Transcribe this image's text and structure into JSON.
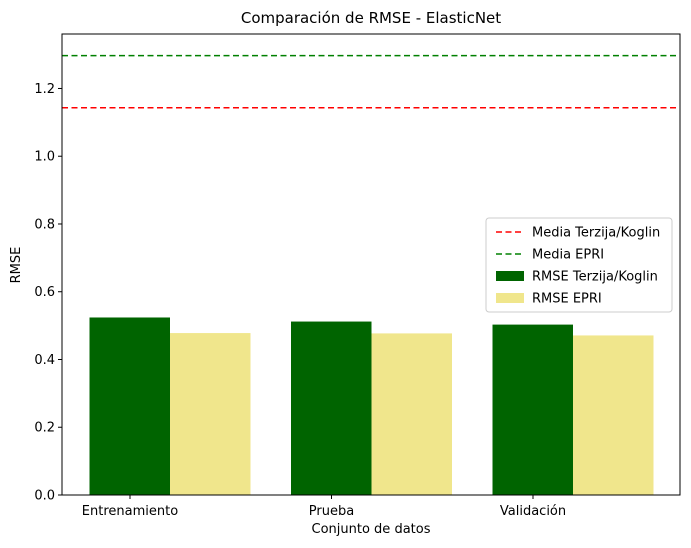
{
  "chart_data": {
    "type": "bar",
    "title": "Comparación de RMSE - ElasticNet",
    "xlabel": "Conjunto de datos",
    "ylabel": "RMSE",
    "categories": [
      "Entrenamiento",
      "Prueba",
      "Validación"
    ],
    "series": [
      {
        "name": "RMSE Terzija/Koglin",
        "values": [
          0.524,
          0.512,
          0.503
        ],
        "color": "#006400"
      },
      {
        "name": "RMSE EPRI",
        "values": [
          0.478,
          0.477,
          0.471
        ],
        "color": "#F0E68C"
      }
    ],
    "reference_lines": [
      {
        "name": "Media Terzija/Koglin",
        "value": 1.143,
        "color": "#FF0000",
        "style": "dashed"
      },
      {
        "name": "Media EPRI",
        "value": 1.297,
        "color": "#008000",
        "style": "dashed"
      }
    ],
    "ylim": [
      0,
      1.3608
    ],
    "yticks": [
      "0.0",
      "0.2",
      "0.4",
      "0.6",
      "0.8",
      "1.0",
      "1.2"
    ],
    "grid": false,
    "legend_position": "center-right"
  }
}
